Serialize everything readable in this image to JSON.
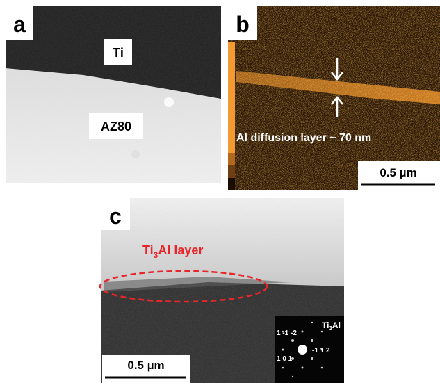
{
  "panels": [
    {
      "label": "a",
      "annotations": [
        "Ti",
        "AZ80"
      ]
    },
    {
      "label": "b",
      "annotation": "Al diffusion layer ~ 70 nm",
      "scale_bar": "0.5 µm"
    },
    {
      "label": "c",
      "layer_label": {
        "base": "Ti",
        "sub": "3",
        "rest": "Al layer"
      },
      "scale_bar": "0.5 µm",
      "diffraction": {
        "phase": {
          "base": "Ti",
          "sub": "3",
          "rest": "Al"
        },
        "indices": [
          "1 -1 -2",
          "-1 1 2",
          "1 0 1"
        ]
      }
    }
  ]
}
